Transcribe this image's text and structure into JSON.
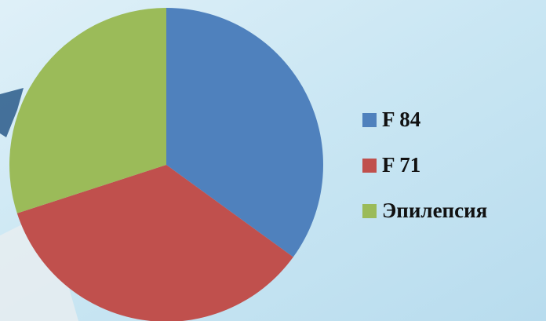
{
  "chart_data": {
    "type": "pie",
    "categories": [
      "F 84",
      "F 71",
      "Эпилепсия"
    ],
    "values": [
      35,
      35,
      30
    ],
    "colors": [
      "#4f81bd",
      "#c0504d",
      "#9bbb59"
    ],
    "legend": "right"
  }
}
